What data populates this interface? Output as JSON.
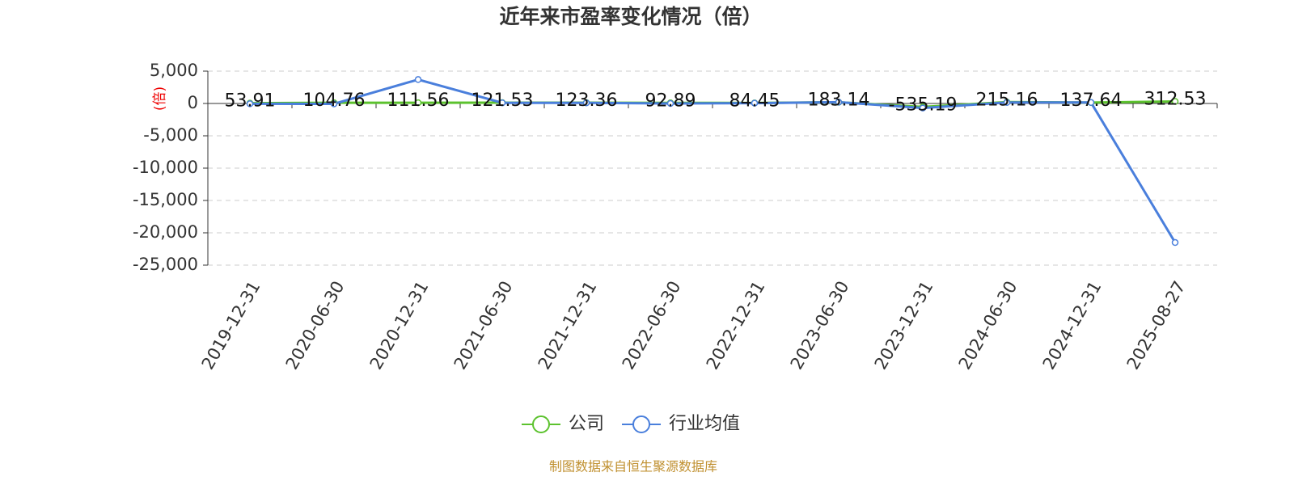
{
  "chart_data": {
    "type": "line",
    "title": "近年来市盈率变化情况（倍）",
    "y_label": "(倍)",
    "source": "制图数据来自恒生聚源数据库",
    "categories": [
      "2019-12-31",
      "2020-06-30",
      "2020-12-31",
      "2021-06-30",
      "2021-12-31",
      "2022-06-30",
      "2022-12-31",
      "2023-06-30",
      "2023-12-31",
      "2024-06-30",
      "2024-12-31",
      "2025-08-27"
    ],
    "series": [
      {
        "name": "公司",
        "color": "#5cc22e",
        "values": [
          53.91,
          104.76,
          111.56,
          121.53,
          123.36,
          92.89,
          84.45,
          183.14,
          -535.19,
          215.16,
          137.64,
          312.53
        ],
        "labels": true
      },
      {
        "name": "行业均值",
        "color": "#4a7fdc",
        "values": [
          -50,
          -60,
          3700,
          100,
          100,
          0,
          50,
          200,
          -700,
          150,
          150,
          -21500
        ]
      }
    ],
    "ylim": [
      -25000,
      5000
    ],
    "yticks": [
      {
        "value": 5000,
        "label": "5,000"
      },
      0,
      {
        "value": -5000,
        "label": "-5,000"
      },
      {
        "value": -10000,
        "label": "-10,000"
      },
      {
        "value": -15000,
        "label": "-15,000"
      },
      {
        "value": -20000,
        "label": "-20,000"
      },
      {
        "value": -25000,
        "label": "-25,000"
      }
    ],
    "grid": true
  }
}
